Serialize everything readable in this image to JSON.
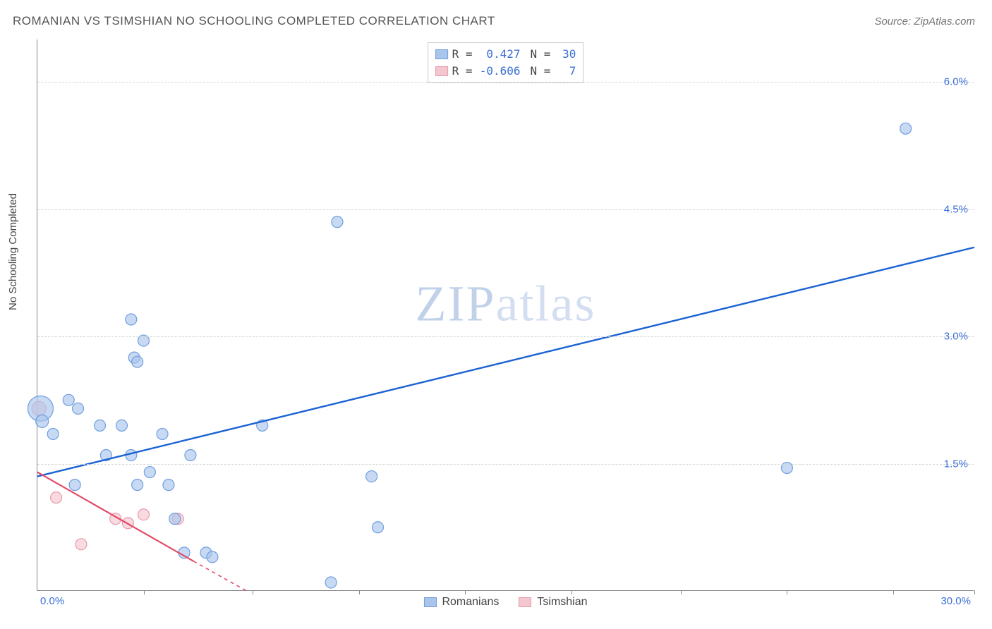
{
  "title": "ROMANIAN VS TSIMSHIAN NO SCHOOLING COMPLETED CORRELATION CHART",
  "source": "Source: ZipAtlas.com",
  "watermark": {
    "bold": "ZIP",
    "light": "atlas"
  },
  "ylabel": "No Schooling Completed",
  "chart": {
    "type": "scatter",
    "background_color": "#ffffff",
    "grid_color": "#d5d5d5",
    "xlim": [
      0,
      30
    ],
    "ylim": [
      0,
      6.5
    ],
    "yticks": [
      1.5,
      3.0,
      4.5,
      6.0
    ],
    "ytick_labels": [
      "1.5%",
      "3.0%",
      "4.5%",
      "6.0%"
    ],
    "xtick_positions": [
      3.4,
      6.9,
      10.3,
      13.7,
      17.1,
      20.6,
      24.0,
      27.4,
      30.0
    ],
    "xtick_label_min": "0.0%",
    "xtick_label_max": "30.0%",
    "axis_label_color": "#3b6fd6",
    "series": {
      "romanians": {
        "label": "Romanians",
        "fill": "#a9c5ec",
        "stroke": "#6f9fe0",
        "trend_color": "#1c63d4",
        "trend": {
          "x1": 0,
          "y1": 1.35,
          "x2": 30,
          "y2": 4.05
        },
        "points": [
          {
            "x": 0.1,
            "y": 2.15,
            "r": 18
          },
          {
            "x": 0.15,
            "y": 2.0,
            "r": 9
          },
          {
            "x": 0.5,
            "y": 1.85,
            "r": 8
          },
          {
            "x": 1.0,
            "y": 2.25,
            "r": 8
          },
          {
            "x": 1.3,
            "y": 2.15,
            "r": 8
          },
          {
            "x": 1.2,
            "y": 1.25,
            "r": 8
          },
          {
            "x": 2.0,
            "y": 1.95,
            "r": 8
          },
          {
            "x": 2.2,
            "y": 1.6,
            "r": 8
          },
          {
            "x": 2.7,
            "y": 1.95,
            "r": 8
          },
          {
            "x": 3.0,
            "y": 3.2,
            "r": 8
          },
          {
            "x": 3.0,
            "y": 1.6,
            "r": 8
          },
          {
            "x": 3.1,
            "y": 2.75,
            "r": 8
          },
          {
            "x": 3.2,
            "y": 2.7,
            "r": 8
          },
          {
            "x": 3.2,
            "y": 1.25,
            "r": 8
          },
          {
            "x": 3.4,
            "y": 2.95,
            "r": 8
          },
          {
            "x": 3.6,
            "y": 1.4,
            "r": 8
          },
          {
            "x": 4.0,
            "y": 1.85,
            "r": 8
          },
          {
            "x": 4.2,
            "y": 1.25,
            "r": 8
          },
          {
            "x": 4.4,
            "y": 0.85,
            "r": 8
          },
          {
            "x": 4.7,
            "y": 0.45,
            "r": 8
          },
          {
            "x": 4.9,
            "y": 1.6,
            "r": 8
          },
          {
            "x": 5.4,
            "y": 0.45,
            "r": 8
          },
          {
            "x": 5.6,
            "y": 0.4,
            "r": 8
          },
          {
            "x": 7.2,
            "y": 1.95,
            "r": 8
          },
          {
            "x": 9.4,
            "y": 0.1,
            "r": 8
          },
          {
            "x": 9.6,
            "y": 4.35,
            "r": 8
          },
          {
            "x": 10.7,
            "y": 1.35,
            "r": 8
          },
          {
            "x": 10.9,
            "y": 0.75,
            "r": 8
          },
          {
            "x": 24.0,
            "y": 1.45,
            "r": 8
          },
          {
            "x": 27.8,
            "y": 5.45,
            "r": 8
          }
        ]
      },
      "tsimshian": {
        "label": "Tsimshian",
        "fill": "#f4c6cf",
        "stroke": "#e89aab",
        "trend_color": "#e34b6a",
        "trend_solid": {
          "x1": 0,
          "y1": 1.4,
          "x2": 5.0,
          "y2": 0.35
        },
        "trend_dashed": {
          "x1": 5.0,
          "y1": 0.35,
          "x2": 6.7,
          "y2": 0.0
        },
        "points": [
          {
            "x": 0.05,
            "y": 2.15,
            "r": 10
          },
          {
            "x": 0.6,
            "y": 1.1,
            "r": 8
          },
          {
            "x": 1.4,
            "y": 0.55,
            "r": 8
          },
          {
            "x": 2.5,
            "y": 0.85,
            "r": 8
          },
          {
            "x": 2.9,
            "y": 0.8,
            "r": 8
          },
          {
            "x": 3.4,
            "y": 0.9,
            "r": 8
          },
          {
            "x": 4.5,
            "y": 0.85,
            "r": 8
          }
        ]
      }
    },
    "legend_top": [
      {
        "swatch_fill": "#a9c5ec",
        "swatch_stroke": "#6f9fe0",
        "r_label": "R =",
        "r_value": "0.427",
        "n_label": "N =",
        "n_value": "30"
      },
      {
        "swatch_fill": "#f4c6cf",
        "swatch_stroke": "#e89aab",
        "r_label": "R =",
        "r_value": "-0.606",
        "n_label": "N =",
        "n_value": "7"
      }
    ],
    "legend_top_value_color": "#3b6fd6",
    "legend_bottom": [
      {
        "swatch_fill": "#a9c5ec",
        "swatch_stroke": "#6f9fe0",
        "label": "Romanians"
      },
      {
        "swatch_fill": "#f4c6cf",
        "swatch_stroke": "#e89aab",
        "label": "Tsimshian"
      }
    ]
  }
}
